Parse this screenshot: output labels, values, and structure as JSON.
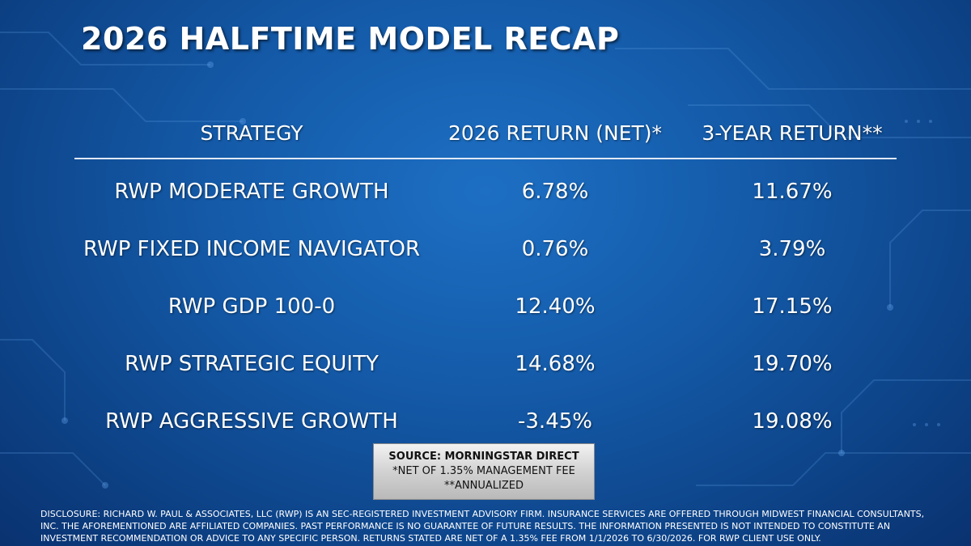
{
  "header": {
    "title": "2026 HALFTIME MODEL RECAP"
  },
  "table": {
    "columns": [
      "STRATEGY",
      "2026 RETURN (NET)*",
      "3-YEAR RETURN**"
    ],
    "rows": [
      [
        "RWP MODERATE GROWTH",
        "6.78%",
        "11.67%"
      ],
      [
        "RWP FIXED INCOME NAVIGATOR",
        "0.76%",
        "3.79%"
      ],
      [
        "RWP GDP 100-0",
        "12.40%",
        "17.15%"
      ],
      [
        "RWP STRATEGIC EQUITY",
        "14.68%",
        "19.70%"
      ],
      [
        "RWP AGGRESSIVE GROWTH",
        "-3.45%",
        "19.08%"
      ]
    ]
  },
  "source_box": {
    "lines": [
      "SOURCE: MORNINGSTAR DIRECT",
      "*NET OF 1.35% MANAGEMENT FEE",
      "**ANNUALIZED"
    ]
  },
  "footer": {
    "disclosure": "DISCLOSURE: RICHARD W. PAUL & ASSOCIATES, LLC (RWP) IS AN SEC-REGISTERED INVESTMENT ADVISORY FIRM. INSURANCE SERVICES ARE OFFERED THROUGH MIDWEST FINANCIAL CONSULTANTS, INC. THE AFOREMENTIONED ARE AFFILIATED COMPANIES. PAST PERFORMANCE IS NO GUARANTEE OF FUTURE RESULTS. THE INFORMATION PRESENTED IS NOT INTENDED TO CONSTITUTE AN INVESTMENT RECOMMENDATION OR ADVICE TO ANY SPECIFIC PERSON. RETURNS STATED ARE NET OF A 1.35% FEE FROM 1/1/2026 TO 6/30/2026. FOR RWP CLIENT USE ONLY."
  }
}
